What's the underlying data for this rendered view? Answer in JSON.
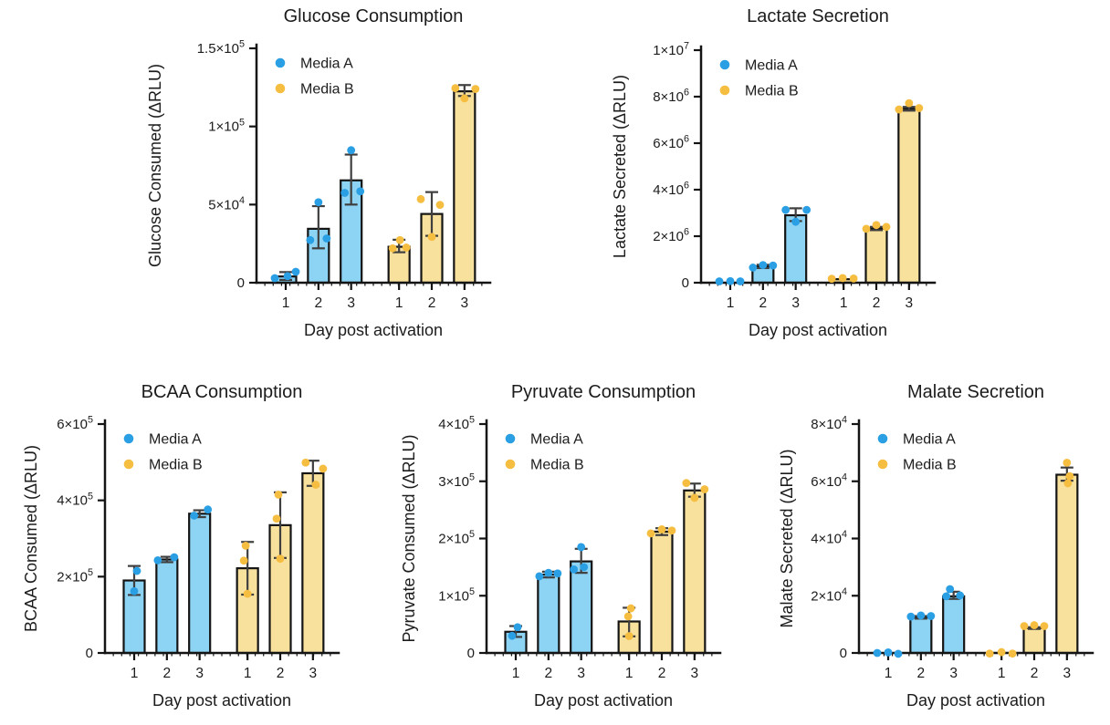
{
  "figure": {
    "background": "#ffffff",
    "legend_labels": [
      "Media A",
      "Media B"
    ],
    "xlabel": "Day post activation"
  },
  "colors": {
    "media_a_dot": "#2b9fe4",
    "media_a_fill": "#8dd3f3",
    "media_b_dot": "#f6be40",
    "media_b_fill": "#f8e19c",
    "axis": "#141414",
    "error_bar": "#3f3f3f",
    "text": "#1c1c1c"
  },
  "chart_data": [
    {
      "type": "bar",
      "title": "Glucose Consumption",
      "xlabel": "Day post activation",
      "ylabel": "Glucose Consumed (ΔRLU)",
      "ylim": [
        0,
        150000
      ],
      "yticks": [
        {
          "value": 0,
          "label": "0"
        },
        {
          "value": 50000,
          "label": "5×10^4"
        },
        {
          "value": 100000,
          "label": "1×10^5"
        },
        {
          "value": 150000,
          "label": "1.5×10^5"
        }
      ],
      "categories": [
        "1",
        "2",
        "3",
        "1",
        "2",
        "3"
      ],
      "legend": [
        "Media A",
        "Media B"
      ],
      "legend_position": "top-left-inside",
      "grid": false,
      "series": [
        {
          "name": "Media A",
          "color_key": "media_a",
          "bars": [
            {
              "day": "1",
              "mean": 4000,
              "err": [
                1800,
                6800
              ],
              "points": [
                [
                  2900,
                  -12
                ],
                [
                  4200,
                  2
                ],
                [
                  7000,
                  11
                ]
              ]
            },
            {
              "day": "2",
              "mean": 34500,
              "err": [
                22000,
                49000
              ],
              "points": [
                [
                  27300,
                  -9
                ],
                [
                  51500,
                  0
                ],
                [
                  28300,
                  9
                ]
              ]
            },
            {
              "day": "3",
              "mean": 65500,
              "err": [
                50000,
                82000
              ],
              "points": [
                [
                  57500,
                  -7
                ],
                [
                  84800,
                  0
                ],
                [
                  58500,
                  10
                ]
              ]
            }
          ]
        },
        {
          "name": "Media B",
          "color_key": "media_b",
          "bars": [
            {
              "day": "1",
              "mean": 23000,
              "err": [
                19500,
                27500
              ],
              "points": [
                [
                  22000,
                  -7
                ],
                [
                  27300,
                  1
                ],
                [
                  22500,
                  8
                ]
              ]
            },
            {
              "day": "2",
              "mean": 44000,
              "err": [
                30000,
                58000
              ],
              "points": [
                [
                  53500,
                  -12
                ],
                [
                  29300,
                  0
                ],
                [
                  49800,
                  9
                ]
              ]
            },
            {
              "day": "3",
              "mean": 122500,
              "err": [
                119500,
                126500
              ],
              "points": [
                [
                  124500,
                  -10
                ],
                [
                  118000,
                  0
                ],
                [
                  124000,
                  12
                ]
              ]
            }
          ]
        }
      ]
    },
    {
      "type": "bar",
      "title": "Lactate Secretion",
      "xlabel": "Day post activation",
      "ylabel": "Lactate Secreted (ΔRLU)",
      "ylim": [
        0,
        10000000
      ],
      "yticks": [
        {
          "value": 0,
          "label": "0"
        },
        {
          "value": 2000000,
          "label": "2×10^6"
        },
        {
          "value": 4000000,
          "label": "4×10^6"
        },
        {
          "value": 6000000,
          "label": "6×10^6"
        },
        {
          "value": 8000000,
          "label": "8×10^6"
        },
        {
          "value": 10000000,
          "label": "1×10^7"
        }
      ],
      "categories": [
        "1",
        "2",
        "3",
        "1",
        "2",
        "3"
      ],
      "legend": [
        "Media A",
        "Media B"
      ],
      "legend_position": "top-left-inside",
      "grid": false,
      "series": [
        {
          "name": "Media A",
          "color_key": "media_a",
          "bars": [
            {
              "day": "1",
              "mean": 50000,
              "err": [
                50000,
                50000
              ],
              "points": [
                [
                  60000,
                  -12
                ],
                [
                  70000,
                  0
                ],
                [
                  60000,
                  11
                ]
              ]
            },
            {
              "day": "2",
              "mean": 700000,
              "err": [
                630000,
                770000
              ],
              "points": [
                [
                  650000,
                  -11
                ],
                [
                  760000,
                  0
                ],
                [
                  740000,
                  11
                ]
              ]
            },
            {
              "day": "3",
              "mean": 2900000,
              "err": [
                2650000,
                3200000
              ],
              "points": [
                [
                  3130000,
                  -11
                ],
                [
                  2620000,
                  0
                ],
                [
                  3130000,
                  12
                ]
              ]
            }
          ]
        },
        {
          "name": "Media B",
          "color_key": "media_b",
          "bars": [
            {
              "day": "1",
              "mean": 150000,
              "err": [
                150000,
                150000
              ],
              "points": [
                [
                  170000,
                  -13
                ],
                [
                  200000,
                  -1
                ],
                [
                  180000,
                  11
                ]
              ]
            },
            {
              "day": "2",
              "mean": 2330000,
              "err": [
                2260000,
                2400000
              ],
              "points": [
                [
                  2320000,
                  -11
                ],
                [
                  2480000,
                  0
                ],
                [
                  2400000,
                  11
                ]
              ]
            },
            {
              "day": "3",
              "mean": 7480000,
              "err": [
                7400000,
                7560000
              ],
              "points": [
                [
                  7450000,
                  -11
                ],
                [
                  7720000,
                  0
                ],
                [
                  7510000,
                  11
                ]
              ]
            }
          ]
        }
      ]
    },
    {
      "type": "bar",
      "title": "BCAA Consumption",
      "xlabel": "Day post activation",
      "ylabel": "BCAA Consumed (ΔRLU)",
      "ylim": [
        0,
        600000
      ],
      "yticks": [
        {
          "value": 0,
          "label": "0"
        },
        {
          "value": 200000,
          "label": "2×10^5"
        },
        {
          "value": 400000,
          "label": "4×10^5"
        },
        {
          "value": 600000,
          "label": "6×10^5"
        }
      ],
      "categories": [
        "1",
        "2",
        "3",
        "1",
        "2",
        "3"
      ],
      "legend": [
        "Media A",
        "Media B"
      ],
      "legend_position": "top-left-inside",
      "grid": false,
      "series": [
        {
          "name": "Media A",
          "color_key": "media_a",
          "bars": [
            {
              "day": "1",
              "mean": 190000,
              "err": [
                152000,
                228000
              ],
              "points": [
                [
                  215000,
                  3
                ],
                [
                  162000,
                  0
                ]
              ]
            },
            {
              "day": "2",
              "mean": 245000,
              "err": [
                238000,
                252000
              ],
              "points": [
                [
                  243000,
                  -10
                ],
                [
                  251000,
                  8
                ]
              ]
            },
            {
              "day": "3",
              "mean": 365000,
              "err": [
                356000,
                374000
              ],
              "points": [
                [
                  360000,
                  -6
                ],
                [
                  376000,
                  9
                ]
              ]
            }
          ]
        },
        {
          "name": "Media B",
          "color_key": "media_b",
          "bars": [
            {
              "day": "1",
              "mean": 222000,
              "err": [
                153000,
                291000
              ],
              "points": [
                [
                  281000,
                  -2
                ],
                [
                  242000,
                  -4
                ],
                [
                  155000,
                  0
                ]
              ]
            },
            {
              "day": "2",
              "mean": 335000,
              "err": [
                249000,
                421000
              ],
              "points": [
                [
                  415000,
                  -2
                ],
                [
                  352000,
                  -4
                ],
                [
                  247000,
                  0
                ]
              ]
            },
            {
              "day": "3",
              "mean": 471000,
              "err": [
                438000,
                504000
              ],
              "points": [
                [
                  499000,
                  -8
                ],
                [
                  441000,
                  3
                ],
                [
                  483000,
                  11
                ]
              ]
            }
          ]
        }
      ]
    },
    {
      "type": "bar",
      "title": "Pyruvate Consumption",
      "xlabel": "Day post activation",
      "ylabel": "Pyruvate Consumed (ΔRLU)",
      "ylim": [
        0,
        400000
      ],
      "yticks": [
        {
          "value": 0,
          "label": "0"
        },
        {
          "value": 100000,
          "label": "1×10^5"
        },
        {
          "value": 200000,
          "label": "2×10^5"
        },
        {
          "value": 300000,
          "label": "3×10^5"
        },
        {
          "value": 400000,
          "label": "4×10^5"
        }
      ],
      "categories": [
        "1",
        "2",
        "3",
        "1",
        "2",
        "3"
      ],
      "legend": [
        "Media A",
        "Media B"
      ],
      "legend_position": "top-left-inside",
      "grid": false,
      "series": [
        {
          "name": "Media A",
          "color_key": "media_a",
          "bars": [
            {
              "day": "1",
              "mean": 37000,
              "err": [
                28000,
                47000
              ],
              "points": [
                [
                  30000,
                  -4
                ],
                [
                  45000,
                  2
                ]
              ]
            },
            {
              "day": "2",
              "mean": 137000,
              "err": [
                132000,
                142000
              ],
              "points": [
                [
                  134000,
                  -10
                ],
                [
                  140000,
                  0
                ],
                [
                  139000,
                  10
                ]
              ]
            },
            {
              "day": "3",
              "mean": 160000,
              "err": [
                140000,
                182000
              ],
              "points": [
                [
                  146000,
                  -8
                ],
                [
                  185000,
                  0
                ],
                [
                  150000,
                  3
                ]
              ]
            }
          ]
        },
        {
          "name": "Media B",
          "color_key": "media_b",
          "bars": [
            {
              "day": "1",
              "mean": 55000,
              "err": [
                29000,
                79000
              ],
              "points": [
                [
                  29500,
                  0
                ],
                [
                  64000,
                  -1
                ],
                [
                  78000,
                  2
                ]
              ]
            },
            {
              "day": "2",
              "mean": 212000,
              "err": [
                206000,
                218000
              ],
              "points": [
                [
                  209000,
                  -12
                ],
                [
                  216000,
                  0
                ],
                [
                  214000,
                  11
                ]
              ]
            },
            {
              "day": "3",
              "mean": 284000,
              "err": [
                273000,
                296000
              ],
              "points": [
                [
                  297000,
                  -9
                ],
                [
                  271000,
                  0
                ],
                [
                  286000,
                  11
                ]
              ]
            }
          ]
        }
      ]
    },
    {
      "type": "bar",
      "title": "Malate Secretion",
      "xlabel": "Day post activation",
      "ylabel": "Malate Secreted (ΔRLU)",
      "ylim": [
        0,
        80000
      ],
      "yticks": [
        {
          "value": 0,
          "label": "0"
        },
        {
          "value": 20000,
          "label": "2×10^4"
        },
        {
          "value": 40000,
          "label": "4×10^4"
        },
        {
          "value": 60000,
          "label": "6×10^4"
        },
        {
          "value": 80000,
          "label": "8×10^4"
        }
      ],
      "categories": [
        "1",
        "2",
        "3",
        "1",
        "2",
        "3"
      ],
      "legend": [
        "Media A",
        "Media B"
      ],
      "legend_position": "top-left-inside",
      "grid": false,
      "series": [
        {
          "name": "Media A",
          "color_key": "media_a",
          "bars": [
            {
              "day": "1",
              "mean": 0,
              "err": [
                0,
                0
              ],
              "points": [
                [
                  0,
                  -12
                ],
                [
                  200,
                  0
                ],
                [
                  -300,
                  11
                ]
              ]
            },
            {
              "day": "2",
              "mean": 12400,
              "err": [
                12000,
                12900
              ],
              "points": [
                [
                  12700,
                  -11
                ],
                [
                  13100,
                  0
                ],
                [
                  12900,
                  11
                ]
              ]
            },
            {
              "day": "3",
              "mean": 19800,
              "err": [
                18900,
                21400
              ],
              "points": [
                [
                  19800,
                  -8
                ],
                [
                  22300,
                  -4
                ],
                [
                  20100,
                  7
                ]
              ]
            }
          ]
        },
        {
          "name": "Media B",
          "color_key": "media_b",
          "bars": [
            {
              "day": "1",
              "mean": 0,
              "err": [
                0,
                0
              ],
              "points": [
                [
                  -200,
                  -13
                ],
                [
                  300,
                  0
                ],
                [
                  -200,
                  12
                ]
              ]
            },
            {
              "day": "2",
              "mean": 8700,
              "err": [
                8400,
                9000
              ],
              "points": [
                [
                  9400,
                  -11
                ],
                [
                  9700,
                  0
                ],
                [
                  9400,
                  11
                ]
              ]
            },
            {
              "day": "3",
              "mean": 62300,
              "err": [
                60200,
                64800
              ],
              "points": [
                [
                  59300,
                  1
                ],
                [
                  61800,
                  3
                ],
                [
                  66500,
                  0
                ]
              ]
            }
          ]
        }
      ]
    }
  ]
}
